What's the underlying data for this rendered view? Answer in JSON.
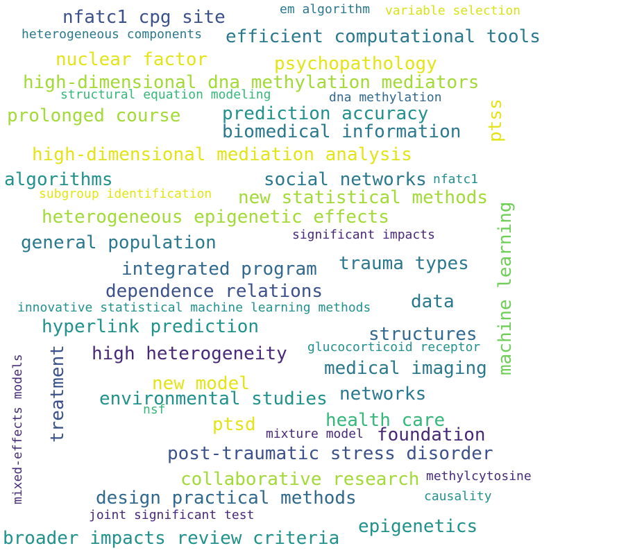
{
  "words": {
    "w01": "nfatc1 cpg site",
    "w02": "em algorithm",
    "w03": "variable selection",
    "w04": "heterogeneous components",
    "w05": "efficient computational tools",
    "w06": "nuclear factor",
    "w07": "psychopathology",
    "w08": "high-dimensional dna methylation mediators",
    "w09": "structural equation modeling",
    "w10": "dna methylation",
    "w11": "prolonged course",
    "w12": "prediction accuracy",
    "w13": "biomedical information",
    "w14": "ptss",
    "w15": "high-dimensional mediation analysis",
    "w16": "algorithms",
    "w17": "social networks",
    "w18": "nfatc1",
    "w19": "subgroup identification",
    "w20": "new statistical methods",
    "w21": "machine learning",
    "w22": "heterogeneous epigenetic effects",
    "w23": "significant impacts",
    "w24": "general population",
    "w25": "integrated program",
    "w26": "trauma types",
    "w27": "dependence relations",
    "w28": "innovative statistical machine learning methods",
    "w29": "data",
    "w30": "hyperlink prediction",
    "w31": "structures",
    "w32": "glucocorticoid receptor",
    "w33": "mixed-effects models",
    "w34": "treatment",
    "w35": "high heterogeneity",
    "w36": "medical imaging",
    "w37": "new model",
    "w38": "environmental studies",
    "w39": "networks",
    "w40": "nsf",
    "w41": "ptsd",
    "w42": "health care",
    "w43": "mixture model",
    "w44": "foundation",
    "w45": "post-traumatic stress disorder",
    "w46": "collaborative research",
    "w47": "methylcytosine",
    "w48": "design practical methods",
    "w49": "causality",
    "w50": "joint significant test",
    "w51": "epigenetics",
    "w52": "broader impacts review criteria"
  }
}
